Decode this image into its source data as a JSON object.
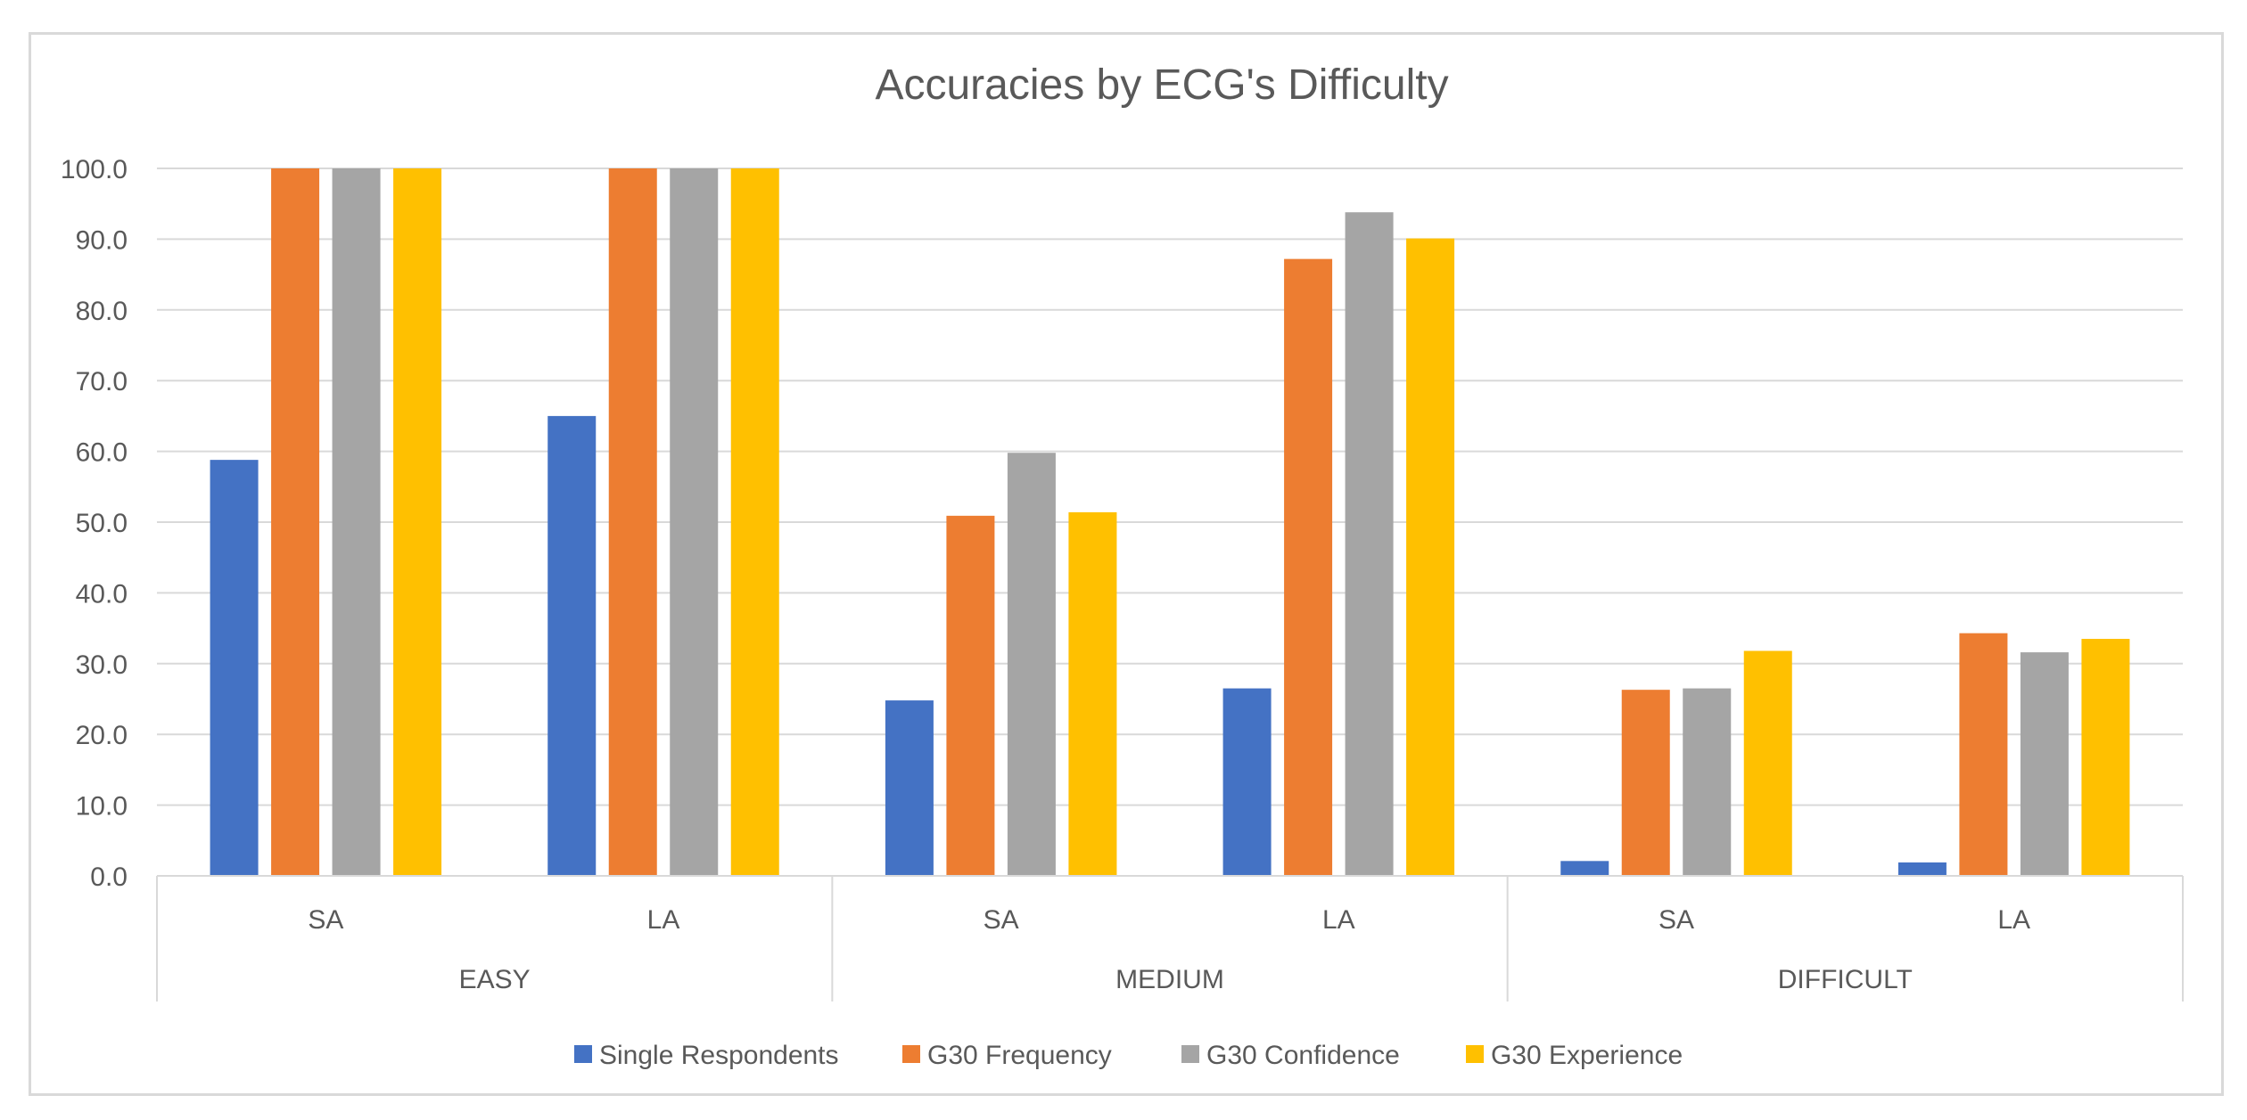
{
  "chart_data": {
    "type": "bar",
    "title": "Accuracies by ECG's Difficulty",
    "xlabel": "",
    "ylabel": "",
    "ylim": [
      0,
      100
    ],
    "yticks": [
      "0.0",
      "10.0",
      "20.0",
      "30.0",
      "40.0",
      "50.0",
      "60.0",
      "70.0",
      "80.0",
      "90.0",
      "100.0"
    ],
    "grid": true,
    "legend_position": "bottom",
    "groups": [
      {
        "label": "EASY",
        "categories": [
          "SA",
          "LA"
        ]
      },
      {
        "label": "MEDIUM",
        "categories": [
          "SA",
          "LA"
        ]
      },
      {
        "label": "DIFFICULT",
        "categories": [
          "SA",
          "LA"
        ]
      }
    ],
    "categories": [
      "EASY SA",
      "EASY LA",
      "MEDIUM SA",
      "MEDIUM LA",
      "DIFFICULT SA",
      "DIFFICULT LA"
    ],
    "series": [
      {
        "name": "Single Respondents",
        "color": "#4472C4",
        "values": [
          58.8,
          65.0,
          24.8,
          26.5,
          2.1,
          1.9
        ]
      },
      {
        "name": "G30 Frequency",
        "color": "#ED7D31",
        "values": [
          100.0,
          100.0,
          50.9,
          87.2,
          26.3,
          34.3
        ]
      },
      {
        "name": "G30 Confidence",
        "color": "#A5A5A5",
        "values": [
          100.0,
          100.0,
          59.8,
          93.8,
          26.5,
          31.6
        ]
      },
      {
        "name": "G30 Experience",
        "color": "#FFC000",
        "values": [
          100.0,
          100.0,
          51.4,
          90.1,
          31.8,
          33.5
        ]
      }
    ]
  }
}
